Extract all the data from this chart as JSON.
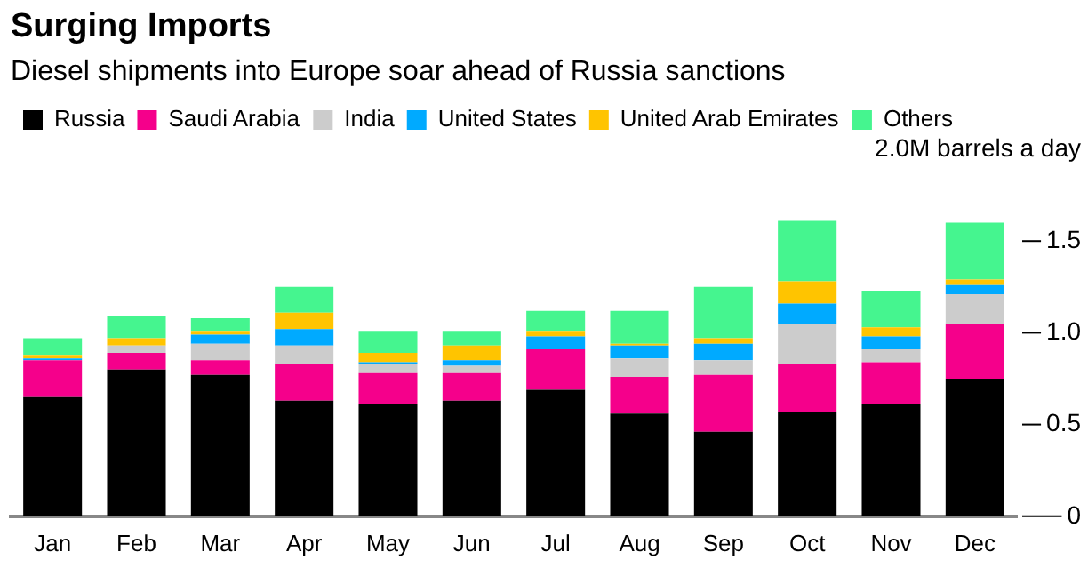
{
  "chart_data": {
    "type": "bar",
    "title": "Surging Imports",
    "subtitle": "Diesel shipments into Europe soar ahead of Russia sanctions",
    "categories": [
      "Jan",
      "Feb",
      "Mar",
      "Apr",
      "May",
      "Jun",
      "Jul",
      "Aug",
      "Sep",
      "Oct",
      "Nov",
      "Dec"
    ],
    "stacked": true,
    "legend": "top left",
    "grid": false,
    "ylim": [
      0,
      2
    ],
    "yticks": [
      0,
      0.5,
      {
        "value": 1,
        "label": "1.0"
      },
      1.5,
      {
        "value": 2,
        "label": "2.0M barrels a day"
      }
    ],
    "series": [
      {
        "name": "Russia",
        "color": "#000000",
        "values": [
          0.65,
          0.8,
          0.77,
          0.63,
          0.61,
          0.63,
          0.69,
          0.56,
          0.46,
          0.57,
          0.61,
          0.75
        ]
      },
      {
        "name": "Saudi Arabia",
        "color": "#f5008b",
        "values": [
          0.2,
          0.09,
          0.08,
          0.2,
          0.17,
          0.15,
          0.22,
          0.2,
          0.31,
          0.26,
          0.23,
          0.3
        ]
      },
      {
        "name": "India",
        "color": "#cccccc",
        "values": [
          0,
          0.04,
          0.09,
          0.1,
          0.05,
          0.04,
          0,
          0.1,
          0.08,
          0.22,
          0.07,
          0.16
        ]
      },
      {
        "name": "United States",
        "color": "#00aaff",
        "values": [
          0.01,
          0,
          0.05,
          0.09,
          0.01,
          0.03,
          0.07,
          0.07,
          0.09,
          0.11,
          0.07,
          0.05
        ]
      },
      {
        "name": "United Arab Emirates",
        "color": "#ffc400",
        "values": [
          0.02,
          0.04,
          0.02,
          0.09,
          0.05,
          0.08,
          0.03,
          0.01,
          0.03,
          0.12,
          0.05,
          0.03
        ]
      },
      {
        "name": "Others",
        "color": "#45f58f",
        "values": [
          0.09,
          0.12,
          0.07,
          0.14,
          0.12,
          0.08,
          0.11,
          0.18,
          0.28,
          0.33,
          0.2,
          0.31
        ]
      }
    ]
  }
}
